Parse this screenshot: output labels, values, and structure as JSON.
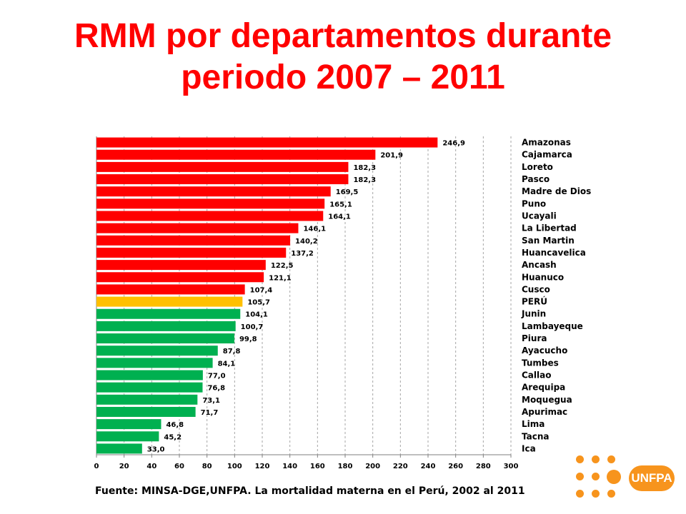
{
  "title": {
    "line1": "RMM por departamentos durante",
    "line2": "periodo 2007 – 2011"
  },
  "chart_data": {
    "type": "bar",
    "orientation": "horizontal",
    "categories": [
      "Amazonas",
      "Cajamarca",
      "Loreto",
      "Pasco",
      "Madre de Dios",
      "Puno",
      "Ucayali",
      "La Libertad",
      "San Martin",
      "Huancavelica",
      "Ancash",
      "Huanuco",
      "Cusco",
      "PERÚ",
      "Junin",
      "Lambayeque",
      "Piura",
      "Ayacucho",
      "Tumbes",
      "Callao",
      "Arequipa",
      "Moquegua",
      "Apurimac",
      "Lima",
      "Tacna",
      "Ica"
    ],
    "values": [
      246.9,
      201.9,
      182.3,
      182.3,
      169.5,
      165.1,
      164.1,
      146.1,
      140.2,
      137.2,
      122.5,
      121.1,
      107.4,
      105.7,
      104.1,
      100.7,
      99.8,
      87.8,
      84.1,
      77.0,
      76.8,
      73.1,
      71.7,
      46.8,
      45.2,
      33.0
    ],
    "value_labels": [
      "246,9",
      "201,9",
      "182,3",
      "182,3",
      "169,5",
      "165,1",
      "164,1",
      "146,1",
      "140,2",
      "137,2",
      "122,5",
      "121,1",
      "107,4",
      "105,7",
      "104,1",
      "100,7",
      "99,8",
      "87,8",
      "84,1",
      "77,0",
      "76,8",
      "73,1",
      "71,7",
      "46,8",
      "45,2",
      "33,0"
    ],
    "colors": [
      "#ff0000",
      "#ff0000",
      "#ff0000",
      "#ff0000",
      "#ff0000",
      "#ff0000",
      "#ff0000",
      "#ff0000",
      "#ff0000",
      "#ff0000",
      "#ff0000",
      "#ff0000",
      "#ff0000",
      "#ffc000",
      "#00b050",
      "#00b050",
      "#00b050",
      "#00b050",
      "#00b050",
      "#00b050",
      "#00b050",
      "#00b050",
      "#00b050",
      "#00b050",
      "#00b050",
      "#00b050"
    ],
    "x_ticks": [
      "0",
      "20",
      "40",
      "60",
      "80",
      "100",
      "120",
      "140",
      "160",
      "180",
      "200",
      "220",
      "240",
      "260",
      "280",
      "300"
    ],
    "xlim": [
      0,
      300
    ],
    "grid": true,
    "legend": "none"
  },
  "source": "Fuente: MINSA-DGE,UNFPA. La mortalidad materna en el Perú, 2002 al 2011",
  "logo": {
    "text": "UNFPA",
    "color": "#f7941d",
    "icon": "un-emblem-icon"
  }
}
